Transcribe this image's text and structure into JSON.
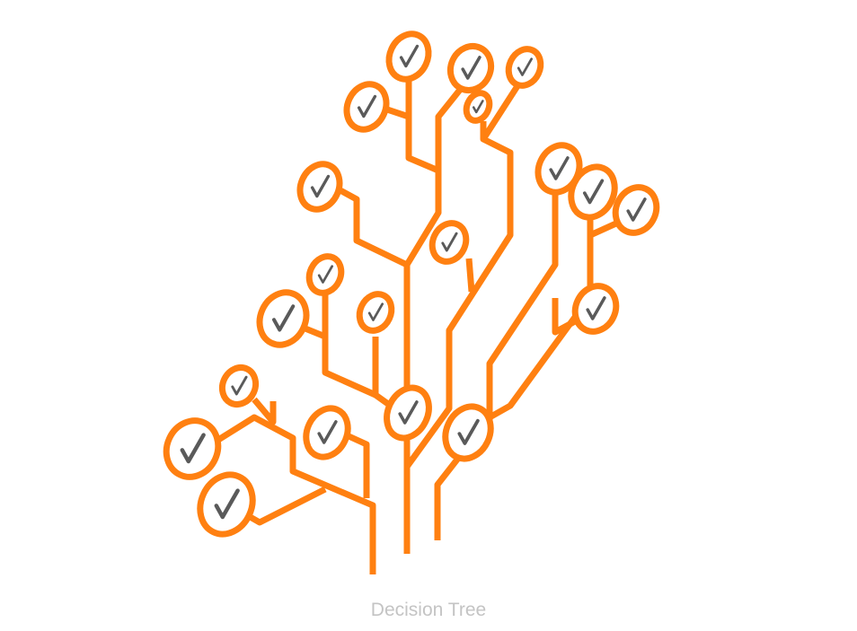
{
  "caption": "Decision Tree",
  "icon": "decision-tree-icon",
  "colors": {
    "branch": "#ff8011",
    "check": "#5a5a5a",
    "caption": "#c4c4c4",
    "background": "#ffffff"
  },
  "node_icon": "checkmark-icon"
}
